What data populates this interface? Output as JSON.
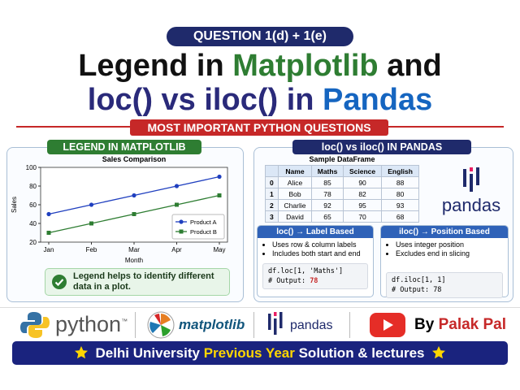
{
  "header": {
    "badge": "QUESTION 1(d) + 1(e)",
    "title_line1": [
      "Legend in",
      "Matplotlib",
      "and"
    ],
    "title_line2": [
      "loc() vs iloc() in",
      "Pandas"
    ],
    "banner": "MOST IMPORTANT PYTHON QUESTIONS"
  },
  "left_panel": {
    "heading": "LEGEND IN MATPLOTLIB",
    "note": "Legend helps to identify different data in a plot."
  },
  "chart_data": {
    "type": "line",
    "title": "Sales Comparison",
    "x_label": "Month",
    "y_label": "Sales",
    "categories": [
      "Jan",
      "Feb",
      "Mar",
      "Apr",
      "May"
    ],
    "series": [
      {
        "name": "Product A",
        "color": "#1f3fbf",
        "marker": "circle",
        "values": [
          50,
          60,
          70,
          80,
          90
        ]
      },
      {
        "name": "Product B",
        "color": "#2e7d32",
        "marker": "square",
        "values": [
          30,
          40,
          50,
          60,
          70
        ]
      }
    ],
    "ylim": [
      20,
      100
    ],
    "yticks": [
      20,
      40,
      60,
      80,
      100
    ],
    "grid": false,
    "legend": "lower right"
  },
  "right_panel": {
    "heading": "loc() vs iloc() IN PANDAS",
    "table": {
      "title": "Sample DataFrame",
      "columns": [
        "Name",
        "Maths",
        "Science",
        "English"
      ],
      "index": [
        0,
        1,
        2,
        3
      ],
      "rows": [
        [
          "Alice",
          85,
          90,
          88
        ],
        [
          "Bob",
          78,
          82,
          80
        ],
        [
          "Charlie",
          92,
          95,
          93
        ],
        [
          "David",
          65,
          70,
          68
        ]
      ]
    },
    "logo": "pandas",
    "loc": {
      "title": "loc() → Label Based",
      "bullets": [
        "Uses row & column labels",
        "Includes both start and end"
      ],
      "code": "df.loc[1, 'Maths']",
      "output_label": "# Output:",
      "output_value": 78
    },
    "iloc": {
      "title": "iloc() → Position Based",
      "bullets": [
        "Uses integer position",
        "Excludes end in slicing"
      ],
      "code": "df.iloc[1, 1]",
      "output_label": "# Output:",
      "output_value": 78
    }
  },
  "footer": {
    "python": {
      "text": "python",
      "mark": "™"
    },
    "matplotlib": "matplotlib",
    "pandas": "pandas",
    "author": [
      "By",
      "Palak Pal"
    ],
    "banner": [
      "Delhi University",
      "Previous Year",
      "Solution & lectures"
    ]
  }
}
